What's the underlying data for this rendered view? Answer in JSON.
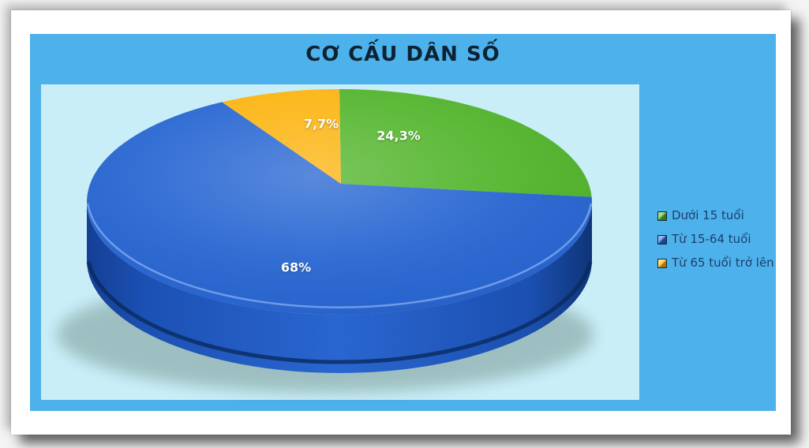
{
  "chart_data": {
    "type": "pie",
    "style": "3d",
    "title": "CƠ CẤU DÂN SỐ",
    "unit": "%",
    "start_angle_deg": 0,
    "direction": "clockwise",
    "legend_position": "right",
    "slices": [
      {
        "label": "Dưới 15 tuổi",
        "value": 24.3,
        "display_value": "24,3%",
        "color": "#55b62f"
      },
      {
        "label": "Từ 15-64 tuổi",
        "value": 68.0,
        "display_value": "68%",
        "color": "#2a68d3"
      },
      {
        "label": "Từ 65 tuổi trở lên",
        "value": 7.7,
        "display_value": "7,7%",
        "color": "#fcb513"
      }
    ],
    "palette": {
      "chart_background": "#4db2ec",
      "plot_background": "#c9eef8",
      "title_color": "#0d2232",
      "legend_text_color": "#1e3e6b",
      "data_label_color": "#ffffff"
    }
  }
}
